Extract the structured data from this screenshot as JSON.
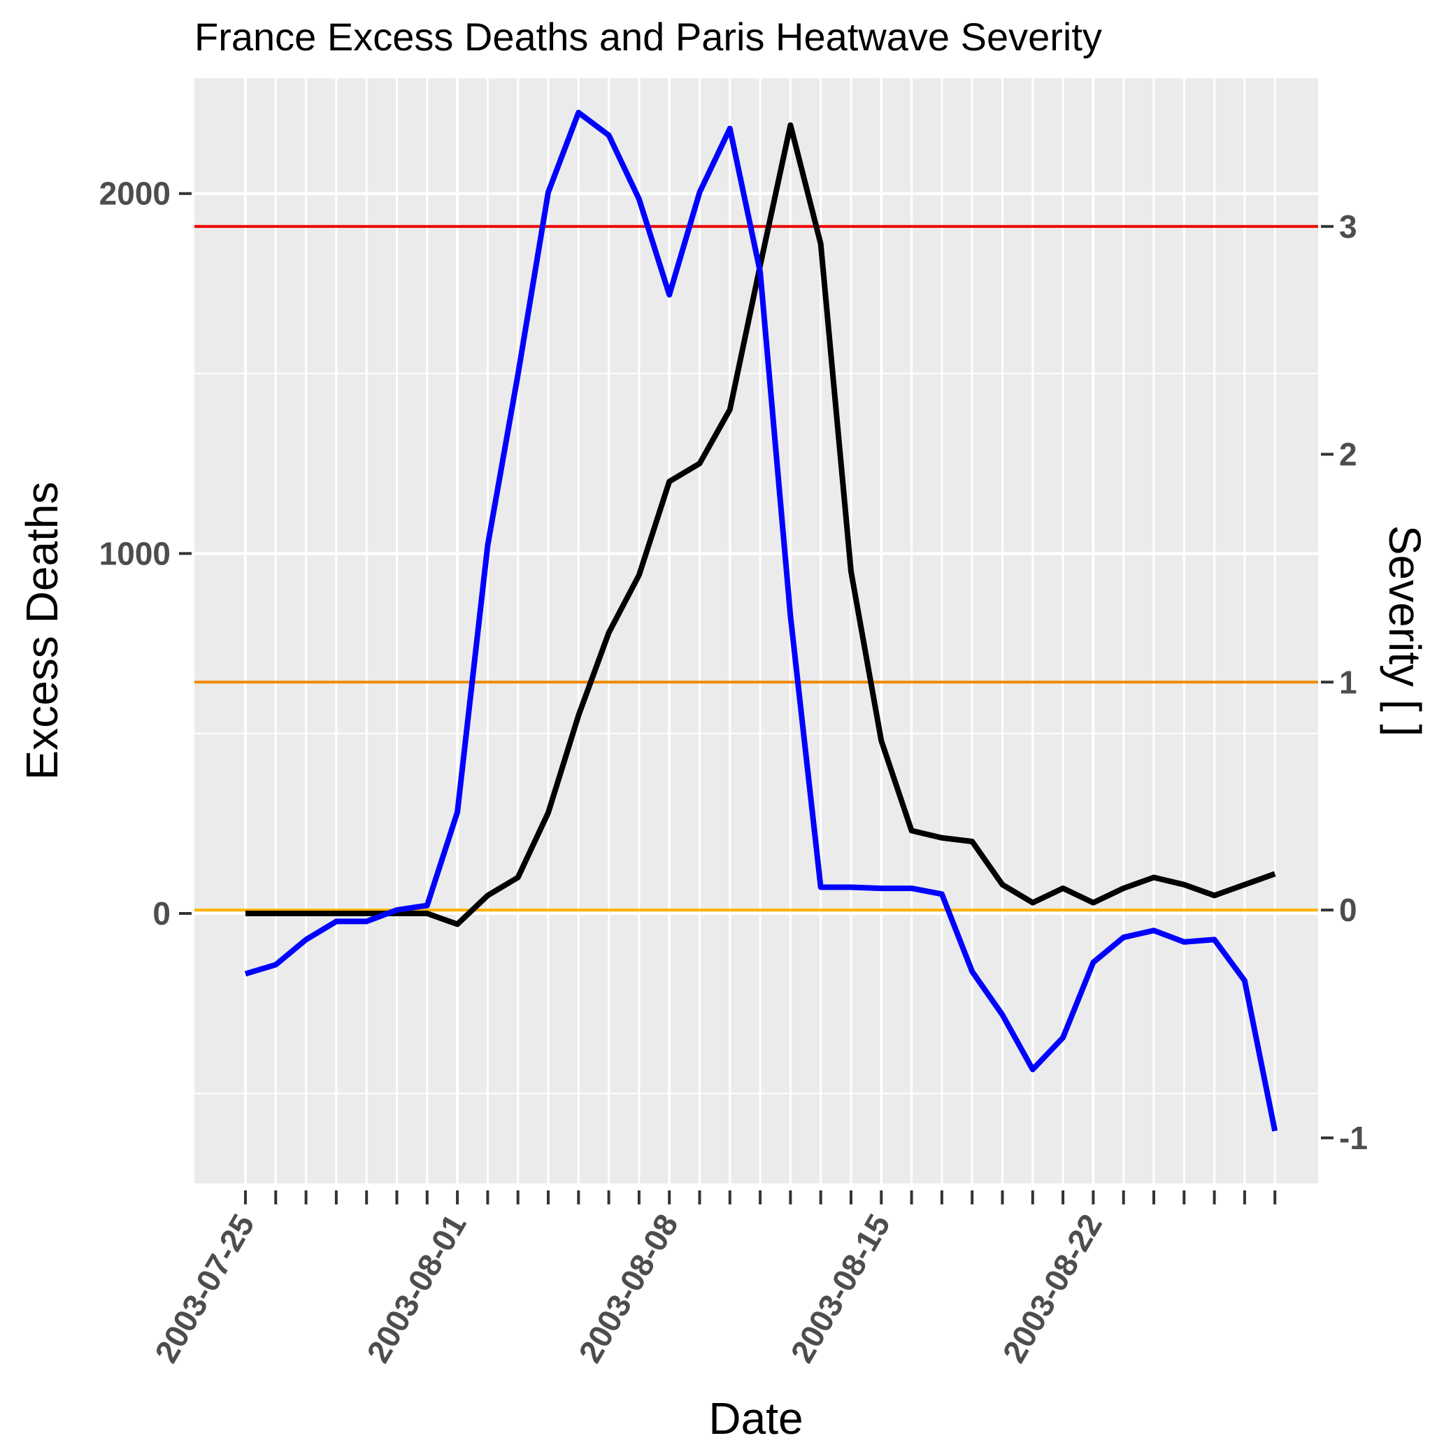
{
  "chart_data": {
    "type": "line",
    "title": "France Excess Deaths and Paris Heatwave Severity",
    "xlabel": "Date",
    "ylabel": "Excess Deaths",
    "y2label": "Severity [ ]",
    "x": [
      "2003-07-25",
      "2003-07-26",
      "2003-07-27",
      "2003-07-28",
      "2003-07-29",
      "2003-07-30",
      "2003-07-31",
      "2003-08-01",
      "2003-08-02",
      "2003-08-03",
      "2003-08-04",
      "2003-08-05",
      "2003-08-06",
      "2003-08-07",
      "2003-08-08",
      "2003-08-09",
      "2003-08-10",
      "2003-08-11",
      "2003-08-12",
      "2003-08-13",
      "2003-08-14",
      "2003-08-15",
      "2003-08-16",
      "2003-08-17",
      "2003-08-18",
      "2003-08-19",
      "2003-08-20",
      "2003-08-21",
      "2003-08-22",
      "2003-08-23",
      "2003-08-24",
      "2003-08-25",
      "2003-08-26",
      "2003-08-27",
      "2003-08-28"
    ],
    "x_ticks": [
      "2003-07-25",
      "2003-08-01",
      "2003-08-08",
      "2003-08-15",
      "2003-08-22"
    ],
    "ylim": [
      -750,
      2320
    ],
    "y_ticks": [
      0,
      1000,
      2000
    ],
    "y2lim": [
      -1.2,
      3.65
    ],
    "y2_ticks": [
      -1,
      0,
      1,
      2,
      3
    ],
    "series": [
      {
        "axis": "left",
        "color": "#000000",
        "values": [
          0,
          0,
          0,
          0,
          0,
          0,
          0,
          -30,
          50,
          100,
          280,
          550,
          780,
          940,
          1200,
          1250,
          1400,
          1800,
          2190,
          1860,
          950,
          480,
          230,
          210,
          200,
          80,
          30,
          70,
          30,
          70,
          100,
          80,
          50,
          80,
          110
        ]
      },
      {
        "axis": "right",
        "color": "#0000ff",
        "values": [
          -0.28,
          -0.24,
          -0.13,
          -0.05,
          -0.05,
          0.0,
          0.02,
          0.43,
          1.6,
          2.35,
          3.15,
          3.5,
          3.4,
          3.12,
          2.7,
          3.15,
          3.43,
          2.8,
          1.29,
          0.1,
          0.1,
          0.095,
          0.095,
          0.07,
          -0.27,
          -0.46,
          -0.7,
          -0.56,
          -0.23,
          -0.12,
          -0.09,
          -0.14,
          -0.13,
          -0.31,
          -0.97
        ]
      }
    ],
    "hlines": [
      {
        "axis": "right",
        "value": 0,
        "color": "#ffb300"
      },
      {
        "axis": "right",
        "value": 1,
        "color": "#f08a00"
      },
      {
        "axis": "right",
        "value": 3,
        "color": "#ee0000"
      }
    ],
    "panel_bg": "#ebebeb",
    "grid_color": "#ffffff",
    "grid": true,
    "legend": "none"
  }
}
